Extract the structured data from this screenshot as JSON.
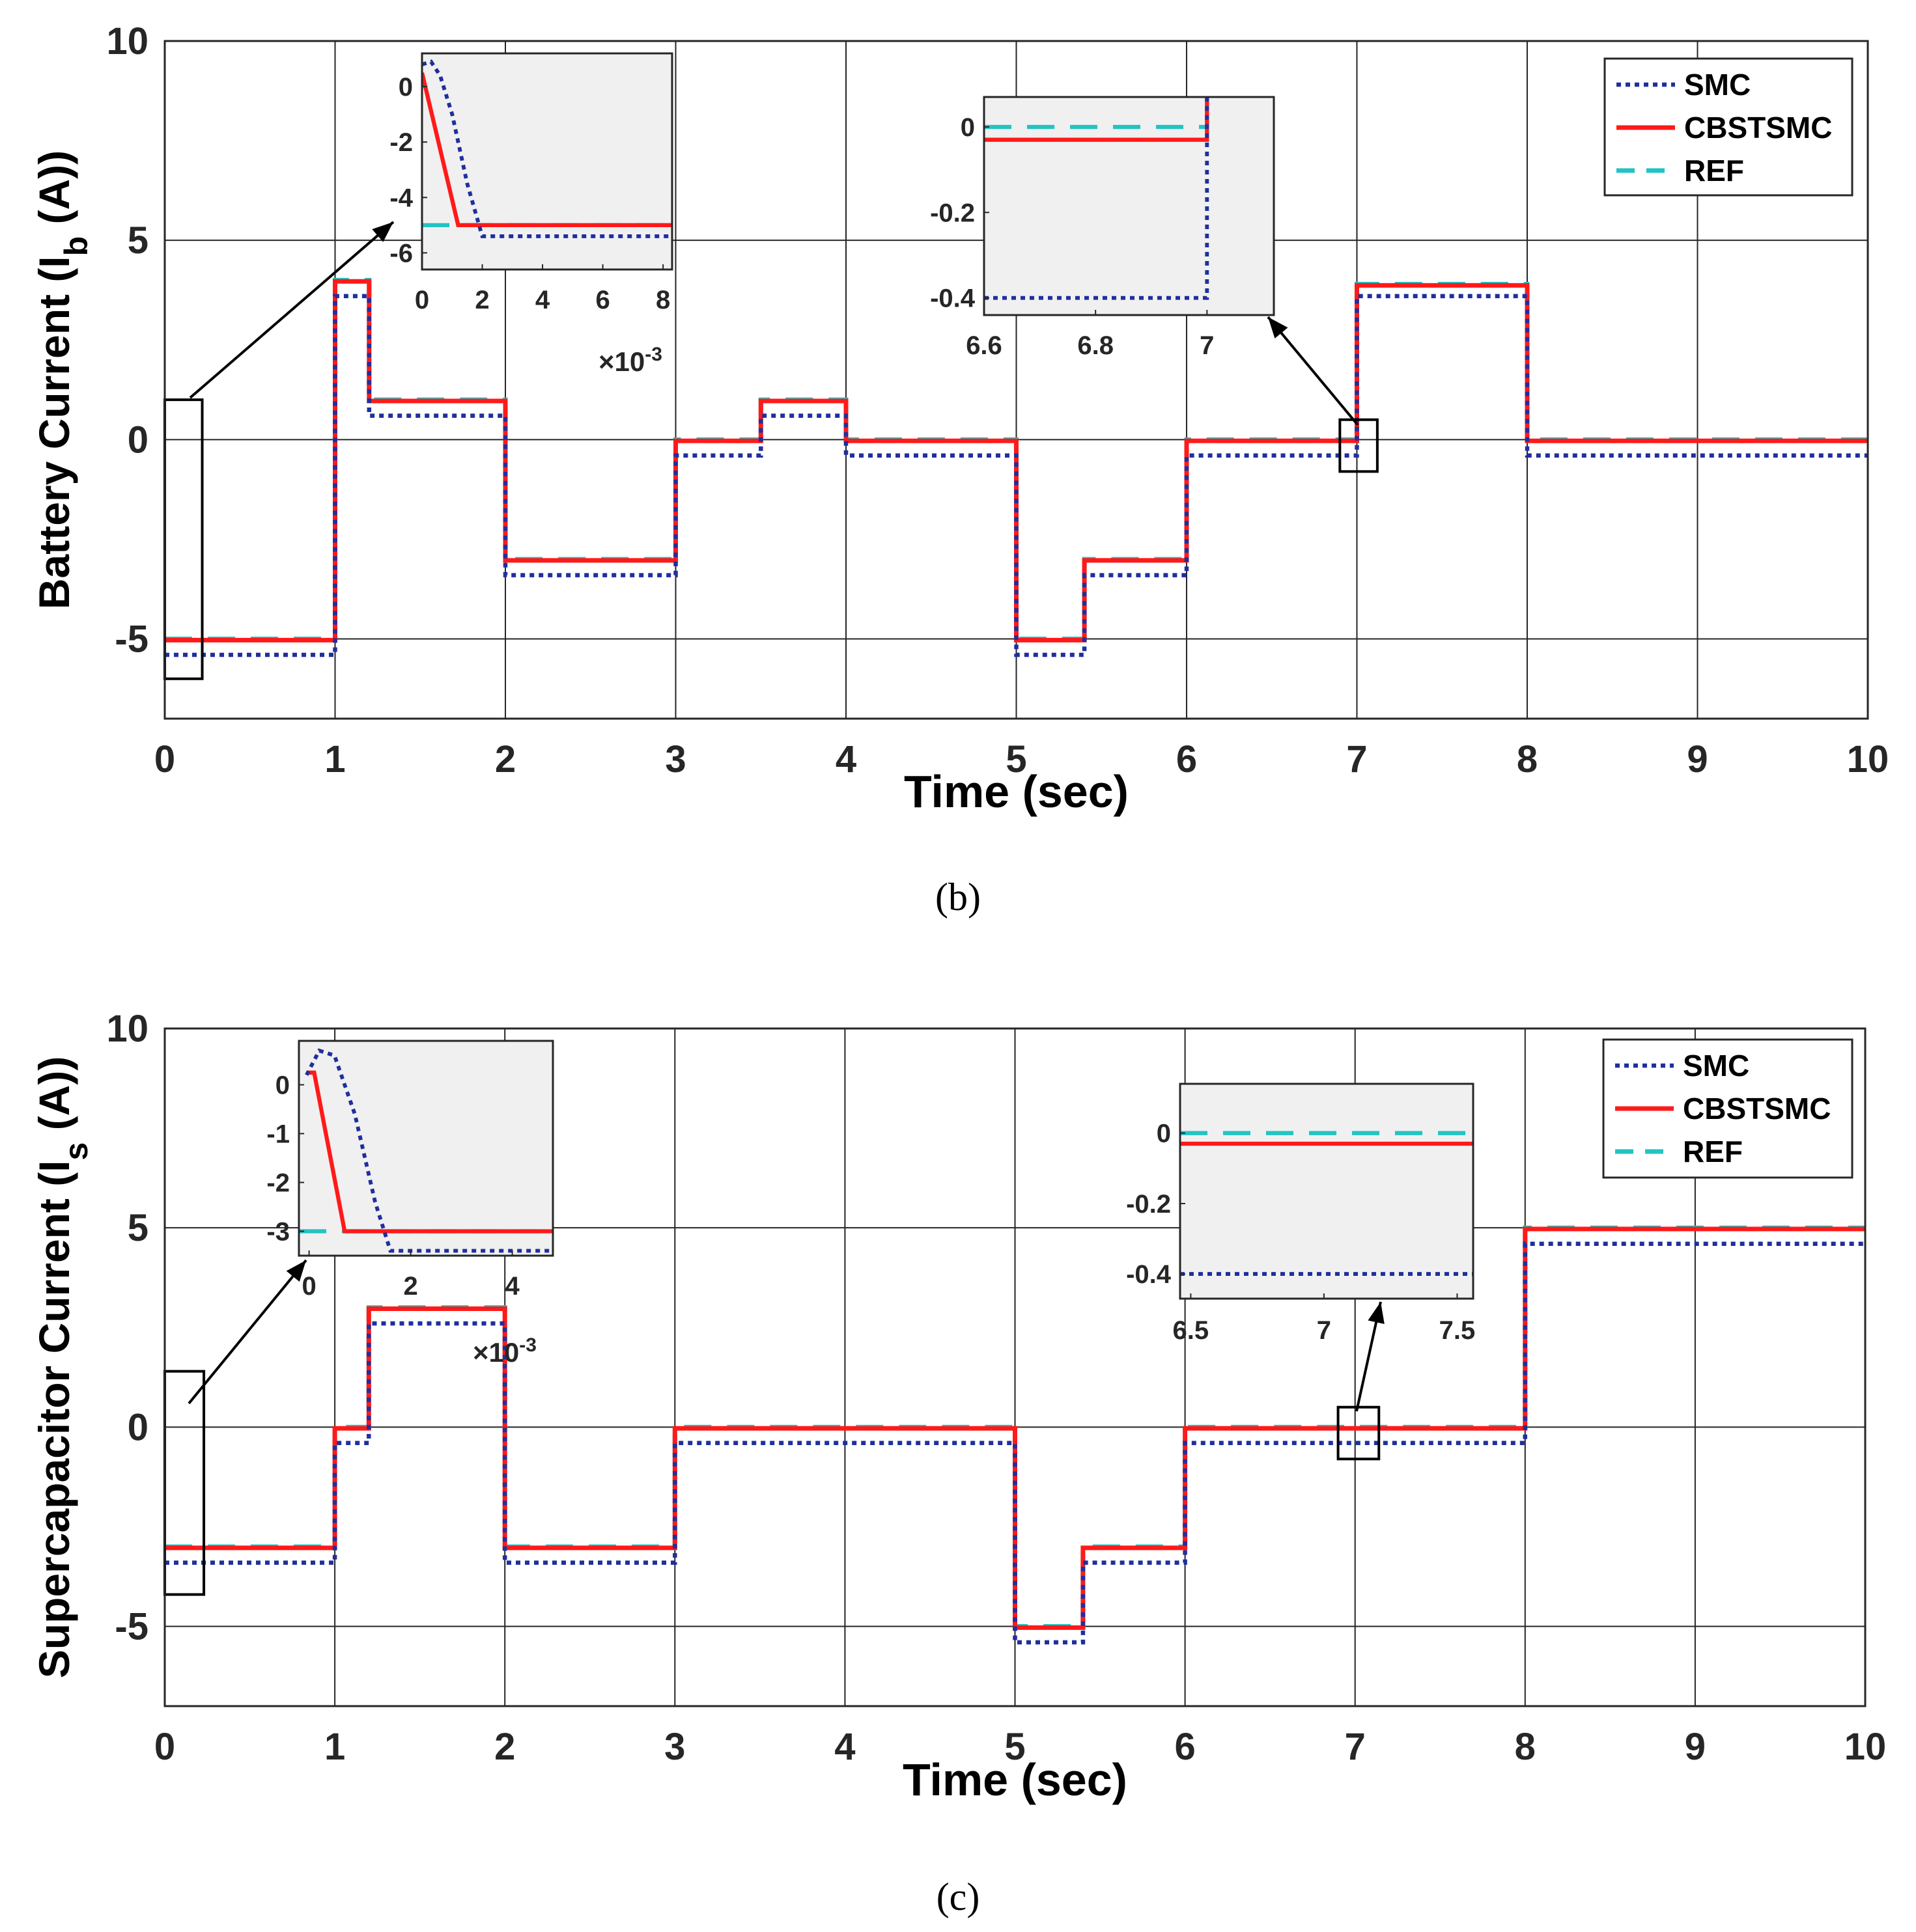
{
  "captions": {
    "b": "(b)",
    "c": "(c)"
  },
  "colors": {
    "smc": "#1f2f9e",
    "cbstsmc": "#ff1a1a",
    "ref": "#22c3c3",
    "inset_bg": "#f0f0f0",
    "grid": "#262626"
  },
  "chart_data": [
    {
      "id": "b",
      "type": "line",
      "xlabel": "Time (sec)",
      "ylabel": {
        "main": "Battery Current (I",
        "sub": "b",
        "tail": " (A))"
      },
      "xlim": [
        0,
        10
      ],
      "ylim": [
        -7,
        10
      ],
      "xticks": [
        0,
        1,
        2,
        3,
        4,
        5,
        6,
        7,
        8,
        9,
        10
      ],
      "xtick_labels": [
        "0",
        "1",
        "2",
        "3",
        "4",
        "5",
        "6",
        "7",
        "8",
        "9",
        "10"
      ],
      "yticks": [
        10,
        5,
        0,
        -5
      ],
      "ytick_labels": [
        "10",
        "5",
        "0",
        "-5"
      ],
      "legend": [
        "SMC",
        "CBSTSMC",
        "REF"
      ],
      "legend_position": "top-right",
      "series": [
        {
          "name": "REF",
          "style": "dashed",
          "x": [
            0,
            1,
            1,
            1.2,
            1.2,
            2,
            2,
            3,
            3,
            3.5,
            3.5,
            4,
            4,
            5,
            5,
            5.4,
            5.4,
            6,
            6,
            7,
            7,
            8,
            8,
            10
          ],
          "y": [
            -5,
            -5,
            4,
            4,
            1,
            1,
            -3,
            -3,
            0,
            0,
            1,
            1,
            0,
            0,
            -5,
            -5,
            -3,
            -3,
            0,
            0,
            3.9,
            3.9,
            0,
            0
          ]
        },
        {
          "name": "CBSTSMC",
          "style": "solid",
          "x": [
            0,
            1,
            1,
            1.2,
            1.2,
            2,
            2,
            3,
            3,
            3.5,
            3.5,
            4,
            4,
            5,
            5,
            5.4,
            5.4,
            6,
            6,
            7,
            7,
            8,
            8,
            10
          ],
          "y": [
            -5.03,
            -5.03,
            3.97,
            3.97,
            0.97,
            0.97,
            -3.03,
            -3.03,
            -0.03,
            -0.03,
            0.97,
            0.97,
            -0.03,
            -0.03,
            -5.03,
            -5.03,
            -3.03,
            -3.03,
            -0.03,
            -0.03,
            3.87,
            3.87,
            -0.03,
            -0.03
          ]
        },
        {
          "name": "SMC",
          "style": "dotted",
          "x": [
            0,
            1,
            1,
            1.2,
            1.2,
            2,
            2,
            3,
            3,
            3.5,
            3.5,
            4,
            4,
            5,
            5,
            5.4,
            5.4,
            6,
            6,
            7,
            7,
            8,
            8,
            10
          ],
          "y": [
            -5.4,
            -5.4,
            3.6,
            3.6,
            0.6,
            0.6,
            -3.4,
            -3.4,
            -0.4,
            -0.4,
            0.6,
            0.6,
            -0.4,
            -0.4,
            -5.4,
            -5.4,
            -3.4,
            -3.4,
            -0.4,
            -0.4,
            3.6,
            3.6,
            -0.4,
            -0.4
          ]
        }
      ],
      "zoom_boxes": [
        {
          "x": [
            0,
            0.22
          ],
          "y": [
            -6,
            1
          ]
        },
        {
          "x": [
            6.9,
            7.12
          ],
          "y": [
            -0.8,
            0.5
          ]
        }
      ],
      "insets": [
        {
          "xlim": [
            0,
            8.3
          ],
          "ylim": [
            -6.6,
            1.2
          ],
          "xticks": [
            0,
            2,
            4,
            6,
            8
          ],
          "xtick_labels": [
            "0",
            "2",
            "4",
            "6",
            "8"
          ],
          "yticks": [
            0,
            -2,
            -4,
            -6
          ],
          "ytick_labels": [
            "0",
            "-2",
            "-4",
            "-6"
          ],
          "multiplier": {
            "times": "×10",
            "exp": "-3"
          },
          "series": [
            {
              "name": "REF",
              "style": "dashed",
              "x": [
                0,
                8.3
              ],
              "y": [
                -5,
                -5
              ]
            },
            {
              "name": "CBSTSMC",
              "style": "solid",
              "x": [
                0,
                1.2,
                8.3
              ],
              "y": [
                0.5,
                -5,
                -5
              ]
            },
            {
              "name": "SMC",
              "style": "dotted",
              "x": [
                0,
                0.3,
                0.6,
                1.0,
                1.5,
                2.0,
                8.3
              ],
              "y": [
                0.8,
                0.9,
                0.4,
                -1.0,
                -3.5,
                -5.4,
                -5.4
              ]
            }
          ]
        },
        {
          "xlim": [
            6.6,
            7.12
          ],
          "ylim": [
            -0.44,
            0.07
          ],
          "xticks": [
            6.6,
            6.8,
            7
          ],
          "xtick_labels": [
            "6.6",
            "6.8",
            "7"
          ],
          "yticks": [
            0,
            -0.2,
            -0.4
          ],
          "ytick_labels": [
            "0",
            "-0.2",
            "-0.4"
          ],
          "series": [
            {
              "name": "REF",
              "style": "dashed",
              "x": [
                6.6,
                7.0,
                7.0
              ],
              "y": [
                0,
                0,
                0.07
              ]
            },
            {
              "name": "CBSTSMC",
              "style": "solid",
              "x": [
                6.6,
                7.0,
                7.0
              ],
              "y": [
                -0.03,
                -0.03,
                0.07
              ]
            },
            {
              "name": "SMC",
              "style": "dotted",
              "x": [
                6.6,
                7.0,
                7.0
              ],
              "y": [
                -0.4,
                -0.4,
                0.07
              ]
            }
          ]
        }
      ]
    },
    {
      "id": "c",
      "type": "line",
      "xlabel": "Time (sec)",
      "ylabel": {
        "main": "Supercapacitor Current (I",
        "sub": "s",
        "tail": " (A))"
      },
      "xlim": [
        0,
        10
      ],
      "ylim": [
        -7,
        10
      ],
      "xticks": [
        0,
        1,
        2,
        3,
        4,
        5,
        6,
        7,
        8,
        9,
        10
      ],
      "xtick_labels": [
        "0",
        "1",
        "2",
        "3",
        "4",
        "5",
        "6",
        "7",
        "8",
        "9",
        "10"
      ],
      "yticks": [
        10,
        5,
        0,
        -5
      ],
      "ytick_labels": [
        "10",
        "5",
        "0",
        "-5"
      ],
      "legend": [
        "SMC",
        "CBSTSMC",
        "REF"
      ],
      "legend_position": "top-right",
      "series": [
        {
          "name": "REF",
          "style": "dashed",
          "x": [
            0,
            1,
            1,
            1.2,
            1.2,
            2,
            2,
            3,
            3,
            5,
            5,
            5.4,
            5.4,
            6,
            6,
            8,
            8,
            10
          ],
          "y": [
            -3,
            -3,
            0,
            0,
            3,
            3,
            -3,
            -3,
            0,
            0,
            -5,
            -5,
            -3,
            -3,
            0,
            0,
            5,
            5
          ]
        },
        {
          "name": "CBSTSMC",
          "style": "solid",
          "x": [
            0,
            1,
            1,
            1.2,
            1.2,
            2,
            2,
            3,
            3,
            5,
            5,
            5.4,
            5.4,
            6,
            6,
            8,
            8,
            10
          ],
          "y": [
            -3.03,
            -3.03,
            -0.03,
            -0.03,
            2.97,
            2.97,
            -3.03,
            -3.03,
            -0.03,
            -0.03,
            -5.03,
            -5.03,
            -3.03,
            -3.03,
            -0.03,
            -0.03,
            4.97,
            4.97
          ]
        },
        {
          "name": "SMC",
          "style": "dotted",
          "x": [
            0,
            1,
            1,
            1.2,
            1.2,
            2,
            2,
            3,
            3,
            5,
            5,
            5.4,
            5.4,
            6,
            6,
            8,
            8,
            10
          ],
          "y": [
            -3.4,
            -3.4,
            -0.4,
            -0.4,
            2.6,
            2.6,
            -3.4,
            -3.4,
            -0.4,
            -0.4,
            -5.4,
            -5.4,
            -3.4,
            -3.4,
            -0.4,
            -0.4,
            4.6,
            4.6
          ]
        }
      ],
      "zoom_boxes": [
        {
          "x": [
            0,
            0.23
          ],
          "y": [
            -4.2,
            1.4
          ]
        },
        {
          "x": [
            6.9,
            7.14
          ],
          "y": [
            -0.8,
            0.5
          ]
        }
      ],
      "insets": [
        {
          "xlim": [
            -0.2,
            4.8
          ],
          "ylim": [
            -3.5,
            0.9
          ],
          "xticks": [
            0,
            2,
            4
          ],
          "xtick_labels": [
            "0",
            "2",
            "4"
          ],
          "yticks": [
            0,
            -1,
            -2,
            -3
          ],
          "ytick_labels": [
            "0",
            "-1",
            "-2",
            "-3"
          ],
          "multiplier": {
            "times": "×10",
            "exp": "-3"
          },
          "series": [
            {
              "name": "REF",
              "style": "dashed",
              "x": [
                -0.2,
                4.8
              ],
              "y": [
                -3,
                -3
              ]
            },
            {
              "name": "CBSTSMC",
              "style": "solid",
              "x": [
                -0.05,
                0.1,
                0.7,
                4.8
              ],
              "y": [
                0.25,
                0.25,
                -3,
                -3
              ]
            },
            {
              "name": "SMC",
              "style": "dotted",
              "x": [
                -0.05,
                0.2,
                0.5,
                0.9,
                1.3,
                1.6,
                4.8
              ],
              "y": [
                0.2,
                0.7,
                0.6,
                -0.6,
                -2.4,
                -3.4,
                -3.4
              ]
            }
          ]
        },
        {
          "xlim": [
            6.46,
            7.56
          ],
          "ylim": [
            -0.47,
            0.14
          ],
          "xticks": [
            6.5,
            7,
            7.5
          ],
          "xtick_labels": [
            "6.5",
            "7",
            "7.5"
          ],
          "yticks": [
            0,
            -0.2,
            -0.4
          ],
          "ytick_labels": [
            "0",
            "-0.2",
            "-0.4"
          ],
          "series": [
            {
              "name": "REF",
              "style": "dashed",
              "x": [
                6.46,
                7.56
              ],
              "y": [
                0,
                0
              ]
            },
            {
              "name": "CBSTSMC",
              "style": "solid",
              "x": [
                6.46,
                7.56
              ],
              "y": [
                -0.03,
                -0.03
              ]
            },
            {
              "name": "SMC",
              "style": "dotted",
              "x": [
                6.46,
                7.56
              ],
              "y": [
                -0.4,
                -0.4
              ]
            }
          ]
        }
      ]
    }
  ]
}
